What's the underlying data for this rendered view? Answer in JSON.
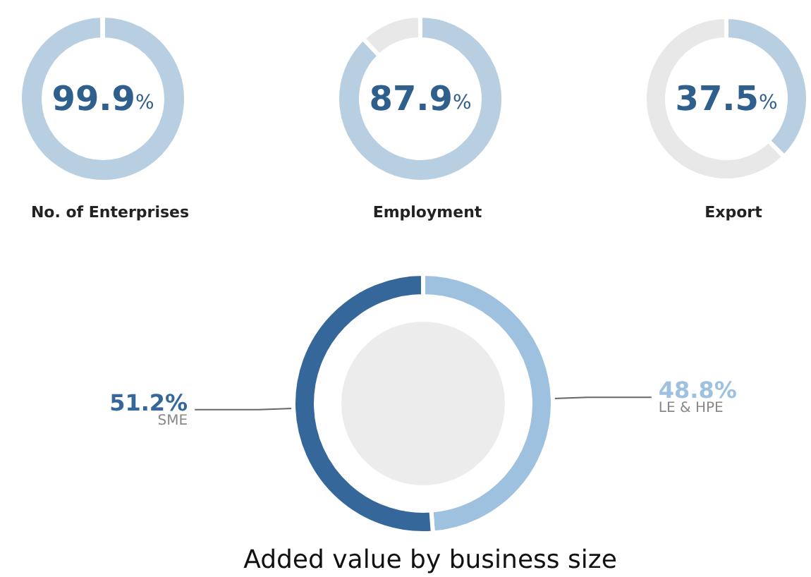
{
  "chart_data": [
    {
      "type": "donut",
      "title": "No. of Enterprises",
      "categories": [
        null,
        null
      ],
      "values": [
        99.9,
        0.1
      ],
      "colors": [
        "#b8cee1",
        "#e8e8e8"
      ],
      "value_labels": [
        "99.9%",
        null
      ]
    },
    {
      "type": "donut",
      "title": "Employment",
      "categories": [
        null,
        null
      ],
      "values": [
        87.9,
        12.1
      ],
      "colors": [
        "#b8cee1",
        "#e8e8e8"
      ],
      "value_labels": [
        "87.9%",
        null
      ]
    },
    {
      "type": "donut",
      "title": "Export",
      "categories": [
        null,
        null
      ],
      "values": [
        37.5,
        62.5
      ],
      "colors": [
        "#b8cee1",
        "#e8e8e8"
      ],
      "value_labels": [
        "37.5%",
        null
      ]
    },
    {
      "type": "donut",
      "title": "Added value by business size",
      "categories": [
        "LE & HPE",
        "SME"
      ],
      "values": [
        48.8,
        51.2
      ],
      "colors": [
        "#9ec1e0",
        "#35679a"
      ],
      "value_labels": [
        "48.8%",
        "51.2%"
      ]
    }
  ]
}
